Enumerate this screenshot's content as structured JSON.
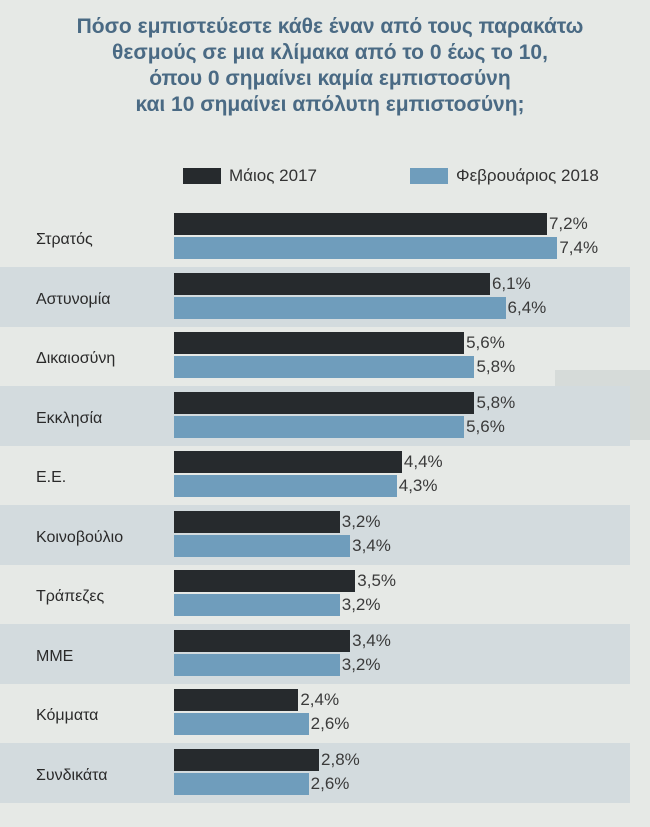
{
  "chart_data": {
    "type": "bar",
    "orientation": "horizontal",
    "title": [
      "Πόσο εμπιστεύεστε κάθε έναν από τους παρακάτω",
      "θεσμούς σε μια κλίμακα από το 0 έως το 10,",
      "όπου 0 σημαίνει καμία εμπιστοσύνη",
      "και 10 σημαίνει απόλυτη εμπιστοσύνη;"
    ],
    "categories": [
      "Στρατός",
      "Αστυνομία",
      "Δικαιοσύνη",
      "Εκκλησία",
      "Ε.Ε.",
      "Κοινοβούλιο",
      "Τράπεζες",
      "ΜΜΕ",
      "Κόμματα",
      "Συνδικάτα"
    ],
    "series": [
      {
        "name": "Μάιος 2017",
        "color": "#262a2d",
        "values": [
          7.2,
          6.1,
          5.6,
          5.8,
          4.4,
          3.2,
          3.5,
          3.4,
          2.4,
          2.8
        ],
        "labels": [
          "7,2%",
          "6,1%",
          "5,6%",
          "5,8%",
          "4,4%",
          "3,2%",
          "3,5%",
          "3,4%",
          "2,4%",
          "2,8%"
        ]
      },
      {
        "name": "Φεβρουάριος 2018",
        "color": "#6f9dbc",
        "values": [
          7.4,
          6.4,
          5.8,
          5.6,
          4.3,
          3.4,
          3.2,
          3.2,
          2.6,
          2.6
        ],
        "labels": [
          "7,4%",
          "6,4%",
          "5,8%",
          "5,6%",
          "4,3%",
          "3,4%",
          "3,2%",
          "3,2%",
          "2,6%",
          "2,6%"
        ]
      }
    ],
    "legend_position": "top",
    "grid": false,
    "xlim": [
      0,
      10
    ]
  }
}
